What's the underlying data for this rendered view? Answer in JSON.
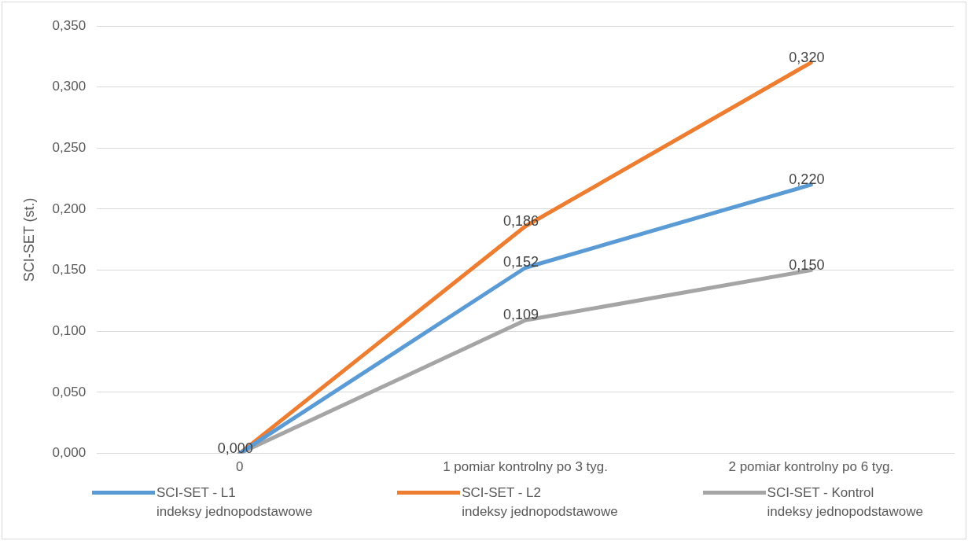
{
  "chart_data": {
    "type": "line",
    "ylabel": "SCI-SET (st.)",
    "categories": [
      "0",
      "1 pomiar kontrolny po 3 tyg.",
      "2 pomiar kontrolny po 6 tyg."
    ],
    "series": [
      {
        "name": "SCI-SET - L1\nindeksy jednopodstawowe",
        "color": "#5b9bd5",
        "values": [
          0,
          0.152,
          0.22
        ],
        "value_labels": [
          null,
          "0,152",
          "0,220"
        ]
      },
      {
        "name": "SCI-SET - L2\nindeksy jednopodstawowe",
        "color": "#ed7d31",
        "values": [
          0,
          0.186,
          0.32
        ],
        "value_labels": [
          null,
          "0,186",
          "0,320"
        ]
      },
      {
        "name": "SCI-SET - Kontrol\nindeksy jednopodstawowe",
        "color": "#a5a5a5",
        "values": [
          0,
          0.109,
          0.15
        ],
        "value_labels": [
          "0,000",
          "0,109",
          "0,150"
        ]
      }
    ],
    "ylim": [
      0,
      0.35
    ],
    "yticks": [
      {
        "value": 0,
        "label": "0,000"
      },
      {
        "value": 0.05,
        "label": "0,050"
      },
      {
        "value": 0.1,
        "label": "0,100"
      },
      {
        "value": 0.15,
        "label": "0,150"
      },
      {
        "value": 0.2,
        "label": "0,200"
      },
      {
        "value": 0.25,
        "label": "0,250"
      },
      {
        "value": 0.3,
        "label": "0,300"
      },
      {
        "value": 0.35,
        "label": "0,350"
      }
    ],
    "grid": "y",
    "legend": "bottom",
    "marker": "none",
    "line_style": "solid"
  }
}
